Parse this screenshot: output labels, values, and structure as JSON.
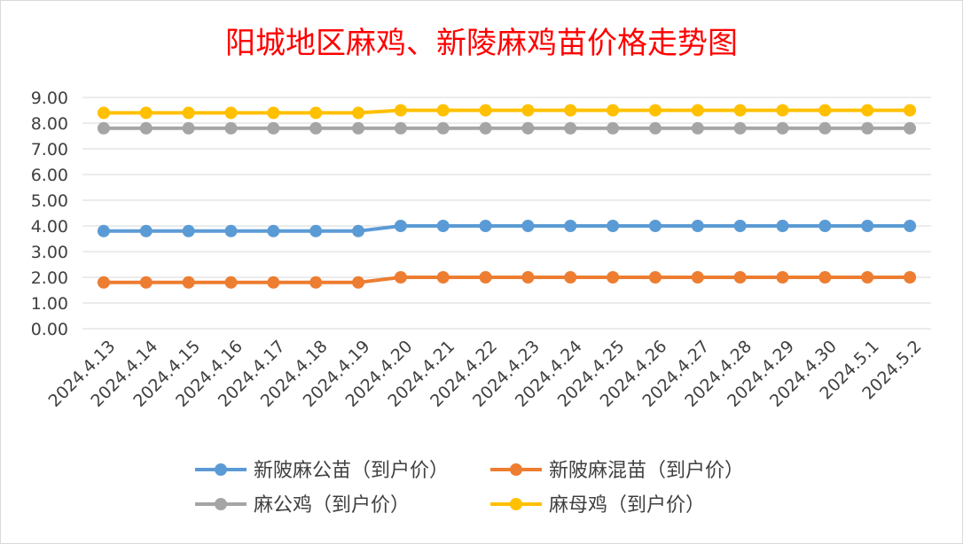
{
  "chart_data": {
    "type": "line",
    "title": "阳城地区麻鸡、新陵麻鸡苗价格走势图",
    "xlabel": "",
    "ylabel": "",
    "ylim": [
      0,
      9
    ],
    "yticks": [
      "0.00",
      "1.00",
      "2.00",
      "3.00",
      "4.00",
      "5.00",
      "6.00",
      "7.00",
      "8.00",
      "9.00"
    ],
    "grid": true,
    "legend_position": "bottom",
    "categories": [
      "2024.4.13",
      "2024.4.14",
      "2024.4.15",
      "2024.4.16",
      "2024.4.17",
      "2024.4.18",
      "2024.4.19",
      "2024.4.20",
      "2024.4.21",
      "2024.4.22",
      "2024.4.23",
      "2024.4.24",
      "2024.4.25",
      "2024.4.26",
      "2024.4.27",
      "2024.4.28",
      "2024.4.29",
      "2024.4.30",
      "2024.5.1",
      "2024.5.2"
    ],
    "series": [
      {
        "name": "新陂麻公苗（到户价）",
        "color": "#5b9bd5",
        "values": [
          3.8,
          3.8,
          3.8,
          3.8,
          3.8,
          3.8,
          3.8,
          4.0,
          4.0,
          4.0,
          4.0,
          4.0,
          4.0,
          4.0,
          4.0,
          4.0,
          4.0,
          4.0,
          4.0,
          4.0
        ]
      },
      {
        "name": "新陂麻混苗（到户价）",
        "color": "#ed7d31",
        "values": [
          1.8,
          1.8,
          1.8,
          1.8,
          1.8,
          1.8,
          1.8,
          2.0,
          2.0,
          2.0,
          2.0,
          2.0,
          2.0,
          2.0,
          2.0,
          2.0,
          2.0,
          2.0,
          2.0,
          2.0
        ]
      },
      {
        "name": "麻公鸡（到户价）",
        "color": "#a5a5a5",
        "values": [
          7.8,
          7.8,
          7.8,
          7.8,
          7.8,
          7.8,
          7.8,
          7.8,
          7.8,
          7.8,
          7.8,
          7.8,
          7.8,
          7.8,
          7.8,
          7.8,
          7.8,
          7.8,
          7.8,
          7.8
        ]
      },
      {
        "name": "麻母鸡（到户价）",
        "color": "#ffc000",
        "values": [
          8.4,
          8.4,
          8.4,
          8.4,
          8.4,
          8.4,
          8.4,
          8.5,
          8.5,
          8.5,
          8.5,
          8.5,
          8.5,
          8.5,
          8.5,
          8.5,
          8.5,
          8.5,
          8.5,
          8.5
        ]
      }
    ]
  }
}
